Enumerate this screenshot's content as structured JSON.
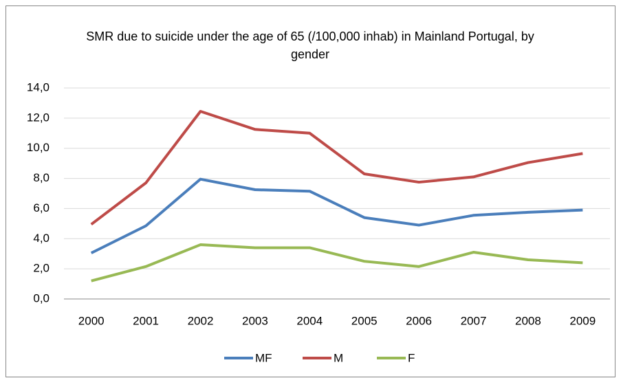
{
  "chart_data": {
    "type": "line",
    "title": "SMR due to suicide under the age of 65 (/100,000 inhab) in Mainland Portugal, by gender",
    "categories": [
      "2000",
      "2001",
      "2002",
      "2003",
      "2004",
      "2005",
      "2006",
      "2007",
      "2008",
      "2009"
    ],
    "series": [
      {
        "name": "MF",
        "color": "#4a7ebb",
        "values": [
          3.05,
          4.85,
          7.95,
          7.25,
          7.15,
          5.4,
          4.9,
          5.55,
          5.75,
          5.9
        ]
      },
      {
        "name": "M",
        "color": "#be4b48",
        "values": [
          4.95,
          7.7,
          12.45,
          11.25,
          11.0,
          8.3,
          7.75,
          8.1,
          9.05,
          9.65
        ]
      },
      {
        "name": "F",
        "color": "#98b954",
        "values": [
          1.2,
          2.15,
          3.6,
          3.4,
          3.4,
          2.5,
          2.15,
          3.1,
          2.6,
          2.4
        ]
      }
    ],
    "ylim": [
      0,
      14
    ],
    "yticks": [
      {
        "value": 0,
        "label": "0,0"
      },
      {
        "value": 2,
        "label": "2,0"
      },
      {
        "value": 4,
        "label": "4,0"
      },
      {
        "value": 6,
        "label": "6,0"
      },
      {
        "value": 8,
        "label": "8,0"
      },
      {
        "value": 10,
        "label": "10,0"
      },
      {
        "value": 12,
        "label": "12,0"
      },
      {
        "value": 14,
        "label": "14,0"
      }
    ],
    "grid": true,
    "legend": "bottom"
  }
}
